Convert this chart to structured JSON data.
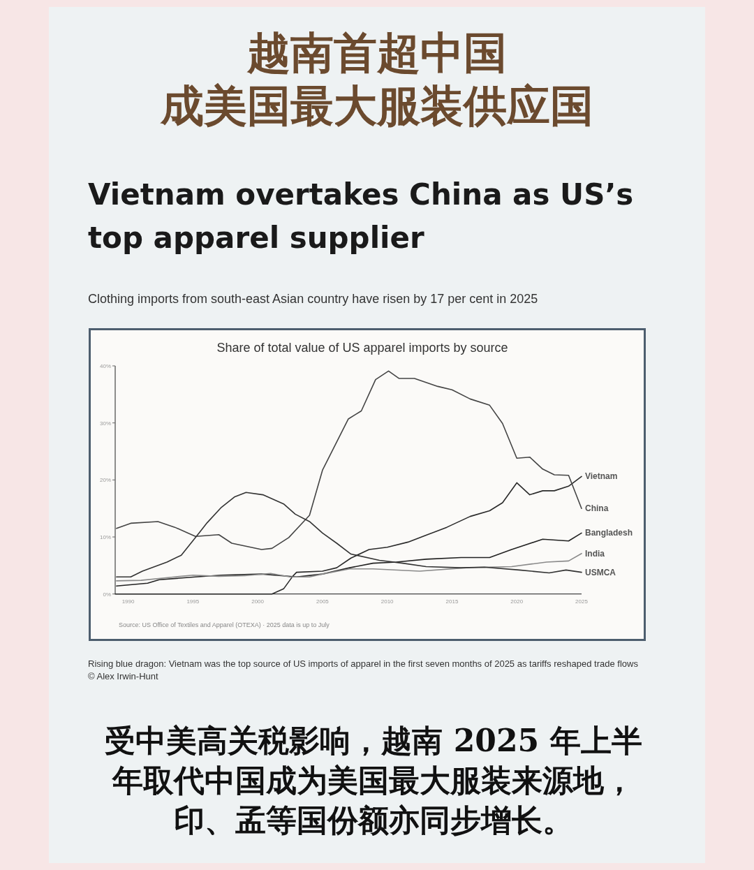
{
  "chart_data": {
    "type": "line",
    "title": "Vietnam overtakes China as US’s top apparel supplier",
    "subtitle": "Clothing imports from south-east Asian country have risen by 17 per cent in 2025",
    "annotations": [
      "越南首超中国",
      "成美国最大服装供应国",
      "Share of total value of US apparel imports by source",
      "Source: US Office of Textiles and Apparel (OTEXA) · 2025 data is up to July",
      "Rising blue dragon: Vietnam was the top source of US imports of apparel in the first seven months of 2025 as tariffs reshaped trade flows © Alex Irwin-Hunt",
      "受中美高关税影响，越南 2025 年上半年取代中国成为美国最大服装来源地，印、孟等国份额亦同步增长。"
    ],
    "xlim": [
      1989,
      2025
    ],
    "xticks": [
      1990,
      1995,
      2000,
      2005,
      2010,
      2015,
      2020,
      2025
    ],
    "ylim": [
      0,
      40
    ],
    "yticks": [
      {
        "value": 0,
        "label": "0%"
      },
      {
        "value": 10,
        "label": "10%"
      },
      {
        "value": 20,
        "label": "20%"
      },
      {
        "value": 30,
        "label": "30%"
      },
      {
        "value": 40,
        "label": "40%"
      }
    ],
    "series": [
      {
        "name": "Vietnam",
        "color": "#2a2a2a",
        "x": [
          1989,
          2001.1,
          2002,
          2002.7,
          2003,
          2005,
          2006.1,
          2007.2,
          2008.6,
          2010,
          2011.6,
          2013,
          2014.6,
          2016.4,
          2017.9,
          2018.9,
          2020,
          2021,
          2022,
          2022.9,
          2024,
          2025
        ],
        "values": [
          0,
          0,
          0.9,
          3.1,
          3.8,
          4.0,
          4.6,
          6.3,
          7.8,
          8.2,
          9.1,
          10.3,
          11.7,
          13.6,
          14.6,
          16.0,
          19.5,
          17.4,
          18.1,
          18.1,
          18.9,
          20.6
        ]
      },
      {
        "name": "China",
        "color": "#444444",
        "x": [
          1989.1,
          1990.2,
          1992.3,
          1993.6,
          1995.2,
          1997,
          1998,
          2000.3,
          2001.1,
          2002.4,
          2004,
          2005,
          2007,
          2008,
          2009.1,
          2010.1,
          2010.9,
          2012.1,
          2013.9,
          2015,
          2016.4,
          2017.9,
          2018.9,
          2020,
          2021,
          2022,
          2022.9,
          2024,
          2025
        ],
        "values": [
          11.5,
          12.4,
          12.7,
          11.7,
          10.1,
          10.4,
          8.9,
          7.8,
          8.0,
          9.9,
          13.8,
          21.7,
          30.7,
          32.1,
          37.6,
          39.1,
          37.8,
          37.8,
          36.4,
          35.8,
          34.2,
          33.1,
          29.9,
          23.8,
          24.0,
          21.9,
          20.9,
          20.8,
          15.0
        ]
      },
      {
        "name": "Bangladesh",
        "color": "#222222",
        "x": [
          1989.1,
          1991.5,
          1992.4,
          1995.2,
          1997.2,
          2000.3,
          2003,
          2005,
          2007.1,
          2008.9,
          2010.7,
          2013,
          2015.7,
          2017.9,
          2019.6,
          2022,
          2024,
          2025
        ],
        "values": [
          1.4,
          1.9,
          2.5,
          3.0,
          3.3,
          3.5,
          3.0,
          3.5,
          4.6,
          5.4,
          5.6,
          6.1,
          6.4,
          6.4,
          7.8,
          9.6,
          9.3,
          10.7
        ]
      },
      {
        "name": "India",
        "color": "#8a8a8a",
        "x": [
          1989.1,
          1991,
          1993.6,
          1995,
          1997,
          1999,
          2001,
          2002.5,
          2004,
          2005,
          2007.1,
          2008.9,
          2012.5,
          2016.1,
          2019.6,
          2022.3,
          2024,
          2025
        ],
        "values": [
          2.3,
          2.4,
          3.0,
          3.3,
          3.1,
          3.2,
          3.6,
          3.0,
          3.0,
          3.5,
          4.4,
          4.4,
          4.0,
          4.6,
          4.8,
          5.6,
          5.8,
          7.1
        ]
      },
      {
        "name": "USMCA",
        "color": "#333333",
        "x": [
          1989.1,
          1990.2,
          1991.1,
          1993,
          1994.1,
          1995.2,
          1996.1,
          1997.2,
          1998.2,
          1999.1,
          2000.4,
          2002,
          2002.9,
          2004,
          2005,
          2006.1,
          2007.2,
          2009.4,
          2011.2,
          2013,
          2015.7,
          2017.5,
          2020.2,
          2022.5,
          2023.8,
          2025
        ],
        "values": [
          3.0,
          3.0,
          4.0,
          5.6,
          6.8,
          9.9,
          12.5,
          15.2,
          17.0,
          17.8,
          17.4,
          15.8,
          14.0,
          12.7,
          10.7,
          8.9,
          7.0,
          5.9,
          5.4,
          4.8,
          4.6,
          4.7,
          4.2,
          3.7,
          4.2,
          3.8
        ]
      }
    ]
  }
}
